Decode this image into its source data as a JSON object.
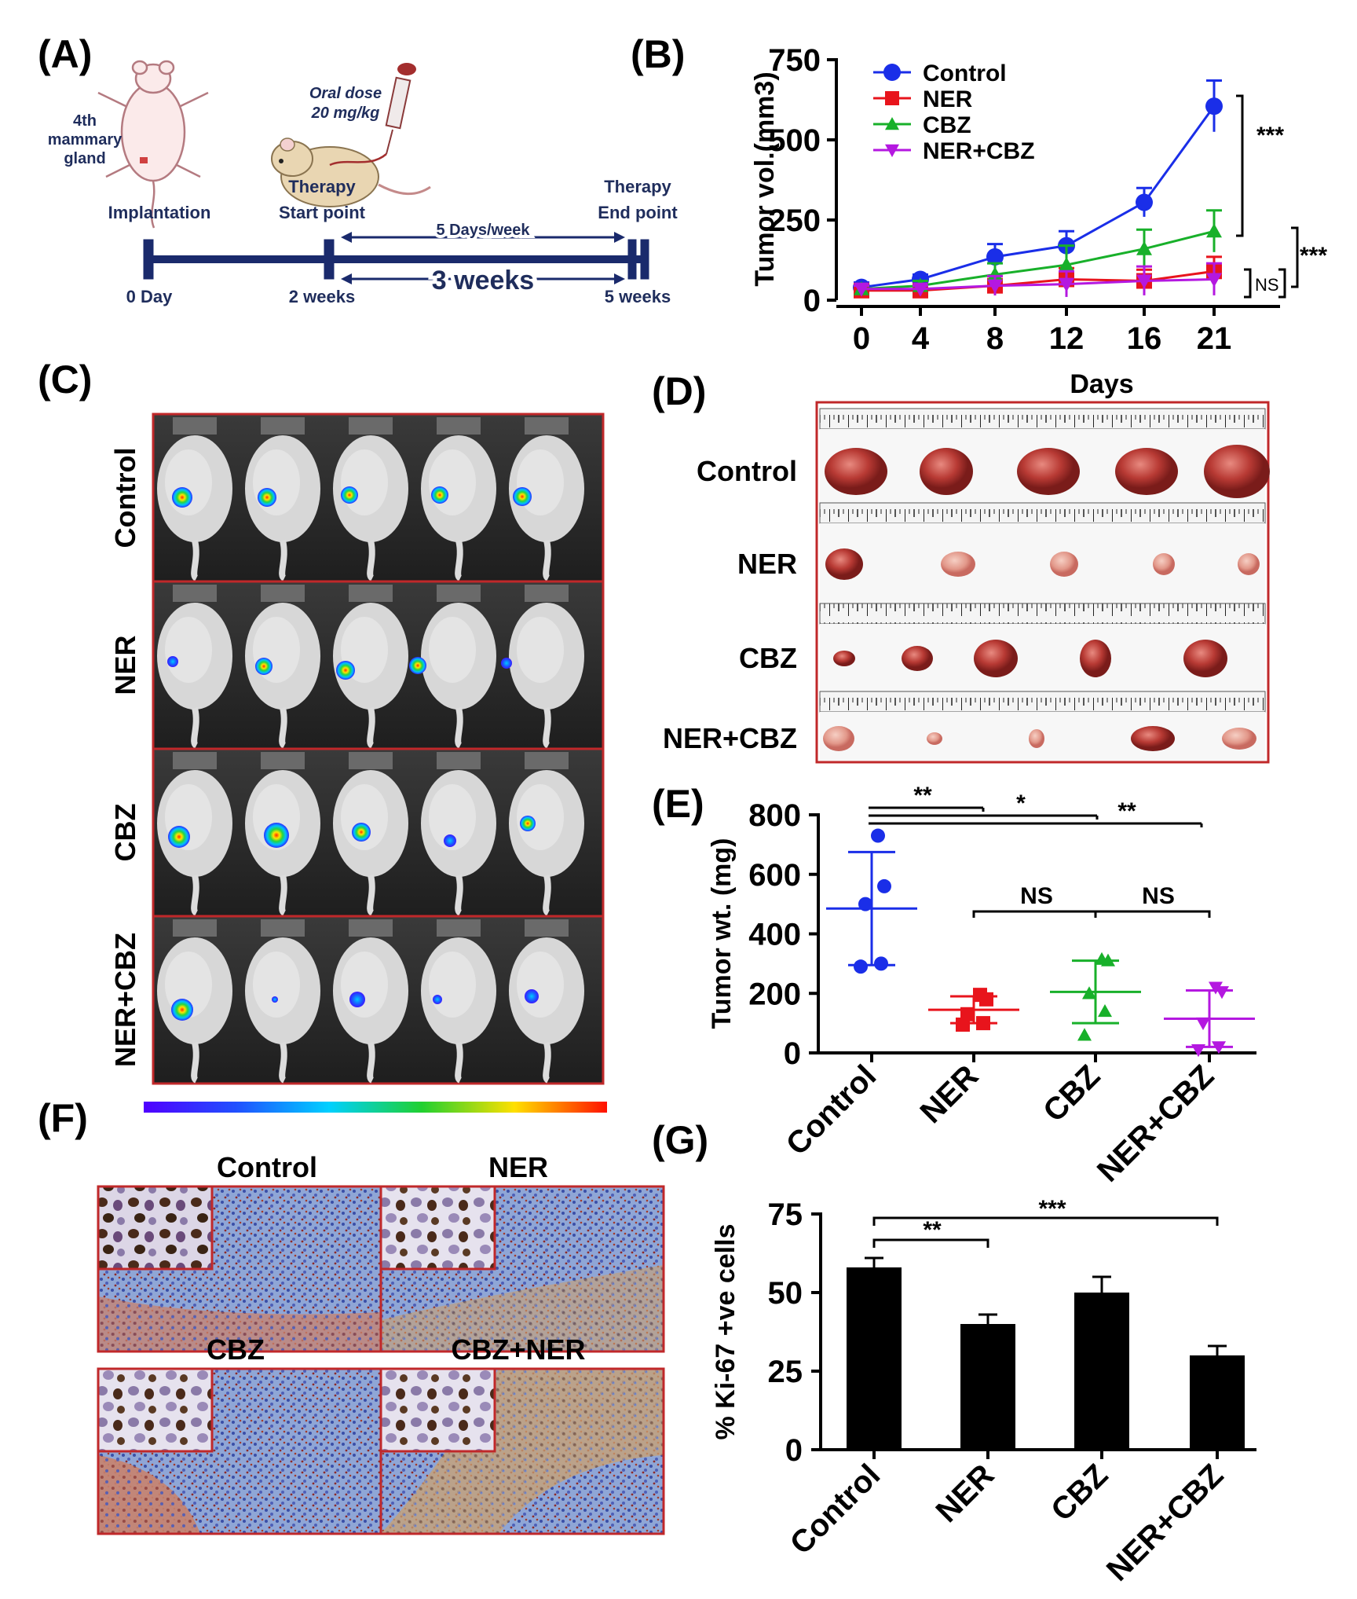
{
  "panel_labels": [
    "(A)",
    "(B)",
    "(C)",
    "(D)",
    "(E)",
    "(F)",
    "(G)"
  ],
  "colors": {
    "control": "#1a2ee8",
    "ner": "#e8141c",
    "cbz": "#18b02a",
    "nercbz": "#b418e0",
    "timeline": "#1a2a6c",
    "frame": "#c0282a"
  },
  "schematic": {
    "mammary_label": "4th mammary gland",
    "implantation": "Implantation",
    "oral_dose_line1": "Oral dose",
    "oral_dose_line2": "20 mg/kg",
    "therapy_start_line1": "Therapy",
    "therapy_start_line2": "Start point",
    "therapy_end_line1": "Therapy",
    "therapy_end_line2": "End point",
    "frequency": "5 Days/week",
    "duration": "3 weeks",
    "day0": "0 Day",
    "week2": "2 weeks",
    "week5": "5 weeks",
    "icons": [
      "mouse-outline-icon",
      "mouse-icon",
      "syringe-icon"
    ]
  },
  "panel_c": {
    "groups": [
      "Control",
      "NER",
      "CBZ",
      "NER+CBZ"
    ],
    "colorbar_icon": "radiance-colorbar"
  },
  "panel_d": {
    "groups": [
      "Control",
      "NER",
      "CBZ",
      "NER+CBZ"
    ]
  },
  "panel_f": {
    "titles": [
      "Control",
      "NER",
      "CBZ",
      "CBZ+NER"
    ]
  },
  "chart_data": [
    {
      "id": "B",
      "type": "line",
      "title": "",
      "xlabel": "Days",
      "ylabel": "Tumor vol.(mm3)",
      "x": [
        0,
        4,
        8,
        12,
        16,
        21
      ],
      "xticks": [
        "0",
        "4",
        "8",
        "12",
        "16",
        "21"
      ],
      "yticks": [
        "0",
        "250",
        "500",
        "750"
      ],
      "ylim": [
        0,
        750
      ],
      "legend_position": "top-left",
      "series": [
        {
          "name": "Control",
          "color": "#1a2ee8",
          "marker": "circle",
          "values": [
            40,
            65,
            135,
            170,
            305,
            605
          ],
          "errors": [
            15,
            15,
            40,
            45,
            45,
            80
          ]
        },
        {
          "name": "NER",
          "color": "#e8141c",
          "marker": "square",
          "values": [
            30,
            30,
            45,
            65,
            60,
            90
          ],
          "errors": [
            10,
            10,
            30,
            35,
            35,
            45
          ]
        },
        {
          "name": "CBZ",
          "color": "#18b02a",
          "marker": "triangle-up",
          "values": [
            35,
            45,
            80,
            110,
            160,
            215
          ],
          "errors": [
            10,
            15,
            35,
            60,
            60,
            65
          ]
        },
        {
          "name": "NER+CBZ",
          "color": "#b418e0",
          "marker": "triangle-down",
          "values": [
            35,
            35,
            45,
            50,
            60,
            65
          ],
          "errors": [
            10,
            10,
            30,
            40,
            45,
            50
          ]
        }
      ],
      "annotations": [
        "***",
        "***",
        "NS"
      ]
    },
    {
      "id": "E",
      "type": "scatter",
      "title": "",
      "xlabel": "",
      "ylabel": "Tumor wt. (mg)",
      "categories": [
        "Control",
        "NER",
        "CBZ",
        "NER+CBZ"
      ],
      "yticks": [
        "0",
        "200",
        "400",
        "600",
        "800"
      ],
      "ylim": [
        0,
        800
      ],
      "groups": [
        {
          "name": "Control",
          "color": "#1a2ee8",
          "marker": "circle",
          "points": [
            730,
            560,
            500,
            300,
            290
          ],
          "mean": 485,
          "sd": 190
        },
        {
          "name": "NER",
          "color": "#e8141c",
          "marker": "square",
          "points": [
            195,
            180,
            130,
            100,
            95
          ],
          "mean": 145,
          "sd": 45
        },
        {
          "name": "CBZ",
          "color": "#18b02a",
          "marker": "triangle-up",
          "points": [
            315,
            310,
            200,
            140,
            60
          ],
          "mean": 205,
          "sd": 105
        },
        {
          "name": "NER+CBZ",
          "color": "#b418e0",
          "marker": "triangle-down",
          "points": [
            220,
            205,
            100,
            20,
            10
          ],
          "mean": 115,
          "sd": 95
        }
      ],
      "annotations": [
        "**",
        "*",
        "**",
        "NS",
        "NS"
      ]
    },
    {
      "id": "G",
      "type": "bar",
      "title": "",
      "xlabel": "",
      "ylabel": "% Ki-67 +ve cells",
      "categories": [
        "Control",
        "NER",
        "CBZ",
        "NER+CBZ"
      ],
      "values": [
        58,
        40,
        50,
        30
      ],
      "errors": [
        3,
        3,
        5,
        3
      ],
      "yticks": [
        "0",
        "25",
        "50",
        "75"
      ],
      "ylim": [
        0,
        75
      ],
      "annotations": [
        "**",
        "***"
      ]
    }
  ]
}
